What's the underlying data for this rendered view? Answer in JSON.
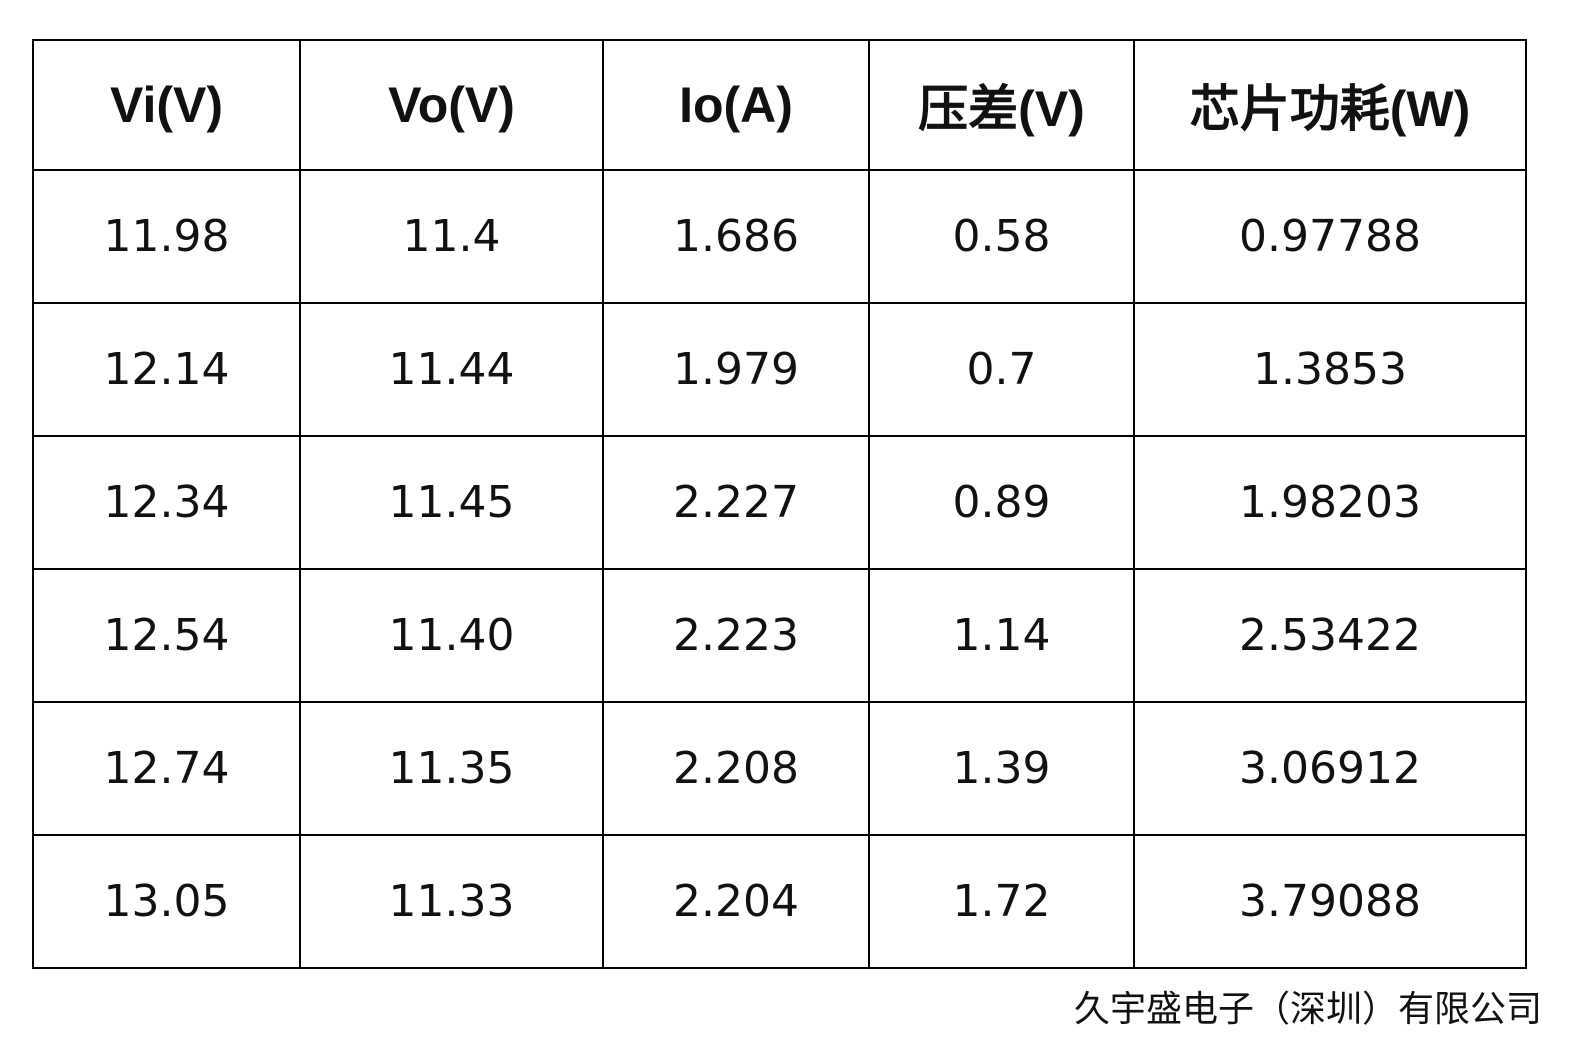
{
  "table": {
    "header": [
      "Vi(V)",
      "Vo(V)",
      "Io(A)",
      "压差(V)",
      "芯片功耗(W)"
    ],
    "rows": [
      [
        "11.98",
        "11.4",
        "1.686",
        "0.58",
        "0.97788"
      ],
      [
        "12.14",
        "11.44",
        "1.979",
        "0.7",
        "1.3853"
      ],
      [
        "12.34",
        "11.45",
        "2.227",
        "0.89",
        "1.98203"
      ],
      [
        "12.54",
        "11.40",
        "2.223",
        "1.14",
        "2.53422"
      ],
      [
        "12.74",
        "11.35",
        "2.208",
        "1.39",
        "3.06912"
      ],
      [
        "13.05",
        "11.33",
        "2.204",
        "1.72",
        "3.79088"
      ]
    ]
  },
  "footer": "久宇盛电子（深圳）有限公司"
}
